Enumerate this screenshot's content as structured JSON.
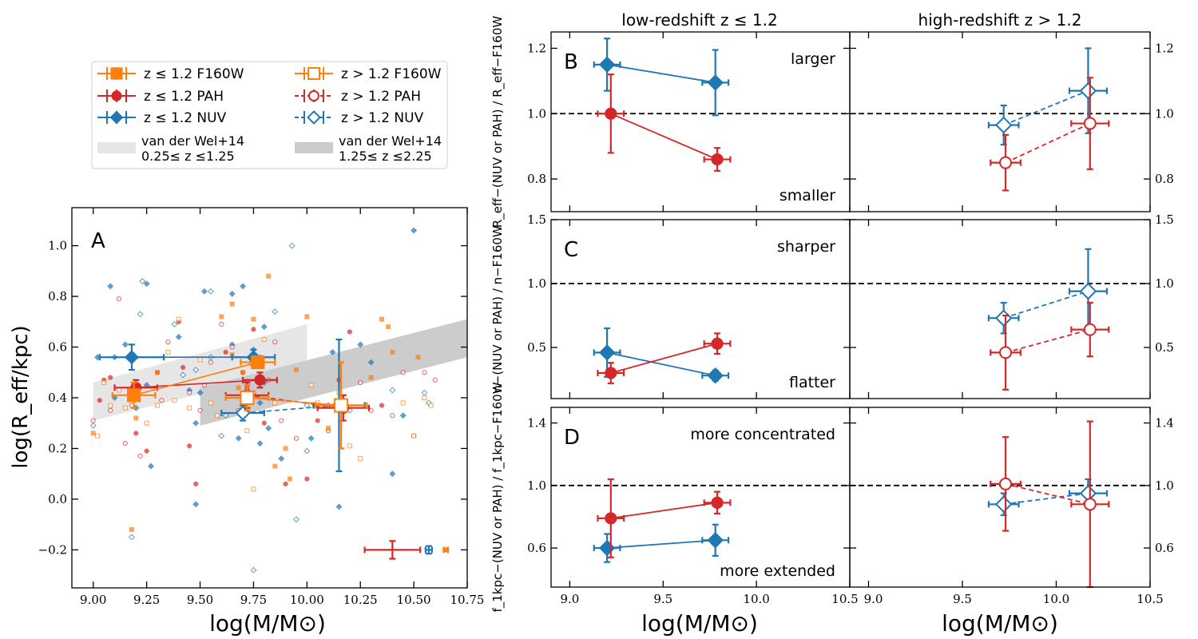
{
  "colors": {
    "f160": "#ff7f0e",
    "pah": "#d62728",
    "nuv": "#1f77b4",
    "band_low": "#e6e6e6",
    "band_high": "#cccccc"
  },
  "legend": {
    "entries": [
      {
        "label": "z ≤ 1.2 F160W",
        "series": "f160",
        "style": "filled-square"
      },
      {
        "label": "z ≤ 1.2 PAH",
        "series": "pah",
        "style": "filled-circle"
      },
      {
        "label": "z ≤ 1.2 NUV",
        "series": "nuv",
        "style": "filled-diamond"
      },
      {
        "label": "z > 1.2 F160W",
        "series": "f160",
        "style": "open-square"
      },
      {
        "label": "z > 1.2 PAH",
        "series": "pah",
        "style": "open-circle"
      },
      {
        "label": "z > 1.2 NUV",
        "series": "nuv",
        "style": "open-diamond"
      }
    ],
    "bands": [
      {
        "line1": "van der Wel+14",
        "line2": "0.25≤ z ≤1.25",
        "shade": "band_low"
      },
      {
        "line1": "van der Wel+14",
        "line2": "1.25≤ z ≤2.25",
        "shade": "band_high"
      }
    ]
  },
  "chart_data": [
    {
      "panel": "A",
      "type": "scatter",
      "xlim": [
        8.9,
        10.75
      ],
      "ylim": [
        -0.35,
        1.15
      ],
      "xlabel": "log(M/M⊙)",
      "ylabel": "log(R_eff/kpc)",
      "xticks": [
        "9.00",
        "9.25",
        "9.50",
        "9.75",
        "10.00",
        "10.25",
        "10.50",
        "10.75"
      ],
      "yticks": [
        "−0.2",
        "0.0",
        "0.2",
        "0.4",
        "0.6",
        "0.8",
        "1.0"
      ],
      "ytick_values": [
        -0.2,
        0.0,
        0.2,
        0.4,
        0.6,
        0.8,
        1.0
      ],
      "xtick_values": [
        9.0,
        9.25,
        9.5,
        9.75,
        10.0,
        10.25,
        10.5,
        10.75
      ],
      "bands": [
        {
          "name": "van der Wel+14 0.25≤z≤1.25",
          "x": [
            9.0,
            10.0
          ],
          "lower": [
            0.31,
            0.52
          ],
          "upper": [
            0.46,
            0.69
          ],
          "shade": "band_low"
        },
        {
          "name": "van der Wel+14 1.25≤z≤2.25",
          "x": [
            9.5,
            10.75
          ],
          "lower": [
            0.29,
            0.56
          ],
          "upper": [
            0.44,
            0.71
          ],
          "shade": "band_high"
        }
      ],
      "scatter": {
        "nuv": [
          [
            9.0,
            0.29
          ],
          [
            9.02,
            0.56
          ],
          [
            9.08,
            0.84
          ],
          [
            9.1,
            0.56
          ],
          [
            9.1,
            0.4
          ],
          [
            9.15,
            0.61
          ],
          [
            9.2,
            0.36
          ],
          [
            9.22,
            0.73
          ],
          [
            9.23,
            0.86
          ],
          [
            9.25,
            0.45
          ],
          [
            9.25,
            0.85
          ],
          [
            9.27,
            0.13
          ],
          [
            9.18,
            -0.15
          ],
          [
            9.38,
            0.69
          ],
          [
            9.4,
            0.64
          ],
          [
            9.42,
            0.49
          ],
          [
            9.45,
            0.43
          ],
          [
            9.48,
            0.3
          ],
          [
            9.48,
            0.51
          ],
          [
            9.5,
            0.42
          ],
          [
            9.52,
            0.82
          ],
          [
            9.55,
            0.82
          ],
          [
            9.55,
            0.56
          ],
          [
            9.6,
            0.25
          ],
          [
            9.62,
            0.33
          ],
          [
            9.65,
            0.81
          ],
          [
            9.65,
            0.61
          ],
          [
            9.68,
            0.24
          ],
          [
            9.7,
            0.84
          ],
          [
            9.75,
            0.59
          ],
          [
            9.75,
            0.53
          ],
          [
            9.78,
            0.38
          ],
          [
            9.78,
            0.22
          ],
          [
            9.8,
            0.46
          ],
          [
            9.8,
            0.68
          ],
          [
            9.82,
            0.28
          ],
          [
            9.85,
            0.74
          ],
          [
            9.88,
            0.16
          ],
          [
            9.93,
            1.0
          ],
          [
            9.95,
            -0.08
          ],
          [
            9.75,
            -0.28
          ],
          [
            9.48,
            -0.02
          ],
          [
            10.0,
            0.37
          ],
          [
            10.0,
            0.19
          ],
          [
            10.02,
            0.24
          ],
          [
            10.1,
            0.37
          ],
          [
            10.12,
            0.58
          ],
          [
            10.15,
            -0.03
          ],
          [
            10.2,
            0.35
          ],
          [
            10.25,
            0.61
          ],
          [
            10.3,
            0.54
          ],
          [
            10.4,
            0.43
          ],
          [
            10.4,
            0.1
          ],
          [
            10.45,
            0.33
          ],
          [
            10.5,
            1.06
          ],
          [
            10.55,
            0.42
          ],
          [
            10.57,
            0.38
          ]
        ],
        "pah": [
          [
            9.0,
            0.31
          ],
          [
            9.03,
            0.39
          ],
          [
            9.05,
            0.47
          ],
          [
            9.08,
            0.48
          ],
          [
            9.08,
            0.35
          ],
          [
            9.12,
            0.79
          ],
          [
            9.15,
            0.22
          ],
          [
            9.18,
            0.37
          ],
          [
            9.2,
            0.26
          ],
          [
            9.22,
            0.17
          ],
          [
            9.25,
            0.19
          ],
          [
            9.3,
            0.5
          ],
          [
            9.32,
            0.39
          ],
          [
            9.35,
            0.62
          ],
          [
            9.4,
            0.7
          ],
          [
            9.42,
            0.52
          ],
          [
            9.45,
            0.42
          ],
          [
            9.48,
            0.06
          ],
          [
            9.5,
            0.35
          ],
          [
            9.52,
            0.45
          ],
          [
            9.55,
            0.54
          ],
          [
            9.6,
            0.69
          ],
          [
            9.62,
            0.58
          ],
          [
            9.65,
            0.6
          ],
          [
            9.68,
            0.35
          ],
          [
            9.7,
            0.5
          ],
          [
            9.72,
            0.44
          ],
          [
            9.75,
            0.42
          ],
          [
            9.75,
            0.67
          ],
          [
            9.78,
            0.56
          ],
          [
            9.8,
            0.3
          ],
          [
            9.82,
            0.47
          ],
          [
            9.85,
            0.62
          ],
          [
            9.88,
            0.31
          ],
          [
            9.9,
            0.06
          ],
          [
            9.95,
            0.24
          ],
          [
            10.0,
            0.08
          ],
          [
            10.05,
            0.31
          ],
          [
            10.1,
            0.27
          ],
          [
            10.15,
            0.47
          ],
          [
            10.2,
            0.66
          ],
          [
            10.25,
            0.46
          ],
          [
            10.3,
            0.35
          ],
          [
            10.35,
            0.37
          ],
          [
            10.4,
            0.33
          ],
          [
            10.45,
            0.5
          ],
          [
            10.5,
            0.25
          ],
          [
            10.55,
            0.5
          ],
          [
            10.6,
            0.47
          ],
          [
            9.45,
            0.21
          ]
        ],
        "f160": [
          [
            9.0,
            0.26
          ],
          [
            9.02,
            0.25
          ],
          [
            9.05,
            0.46
          ],
          [
            9.08,
            0.37
          ],
          [
            9.12,
            0.43
          ],
          [
            9.15,
            0.36
          ],
          [
            9.18,
            -0.12
          ],
          [
            9.2,
            0.32
          ],
          [
            9.25,
            0.3
          ],
          [
            9.3,
            0.5
          ],
          [
            9.35,
            0.58
          ],
          [
            9.38,
            0.39
          ],
          [
            9.4,
            0.71
          ],
          [
            9.45,
            0.36
          ],
          [
            9.5,
            0.55
          ],
          [
            9.55,
            0.38
          ],
          [
            9.58,
            0.33
          ],
          [
            9.6,
            0.72
          ],
          [
            9.65,
            0.77
          ],
          [
            9.65,
            0.57
          ],
          [
            9.68,
            0.44
          ],
          [
            9.7,
            0.5
          ],
          [
            9.72,
            0.27
          ],
          [
            9.75,
            0.04
          ],
          [
            9.75,
            0.71
          ],
          [
            9.8,
            0.63
          ],
          [
            9.82,
            0.88
          ],
          [
            9.85,
            0.38
          ],
          [
            9.85,
            0.13
          ],
          [
            9.9,
            0.2
          ],
          [
            9.92,
            0.08
          ],
          [
            9.95,
            0.51
          ],
          [
            10.0,
            0.72
          ],
          [
            10.02,
            0.45
          ],
          [
            10.05,
            0.38
          ],
          [
            10.1,
            0.28
          ],
          [
            10.15,
            0.42
          ],
          [
            10.2,
            0.21
          ],
          [
            10.25,
            0.16
          ],
          [
            10.3,
            0.48
          ],
          [
            10.35,
            0.71
          ],
          [
            10.38,
            0.68
          ],
          [
            10.4,
            0.58
          ],
          [
            10.45,
            0.38
          ],
          [
            10.5,
            0.25
          ],
          [
            10.52,
            0.56
          ],
          [
            10.55,
            0.4
          ],
          [
            10.58,
            0.37
          ],
          [
            9.3,
            0.37
          ]
        ]
      },
      "binned": [
        {
          "series": "nuv",
          "style": "filled",
          "x": [
            9.18,
            9.75
          ],
          "y": [
            0.56,
            0.56
          ],
          "xerr": [
            0.15,
            0.1
          ],
          "yerr": [
            0.05,
            0.03
          ]
        },
        {
          "series": "pah",
          "style": "filled",
          "x": [
            9.2,
            9.78
          ],
          "y": [
            0.44,
            0.47
          ],
          "xerr": [
            0.1,
            0.08
          ],
          "yerr": [
            0.03,
            0.03
          ]
        },
        {
          "series": "f160",
          "style": "filled",
          "x": [
            9.19,
            9.77
          ],
          "y": [
            0.41,
            0.54
          ],
          "xerr": [
            0.1,
            0.08
          ],
          "yerr": [
            0.05,
            0.02
          ]
        },
        {
          "series": "nuv",
          "style": "open",
          "x": [
            9.7,
            10.15
          ],
          "y": [
            0.34,
            0.37
          ],
          "xerr": [
            0.1,
            0.12
          ],
          "yerr": [
            0.03,
            0.26
          ]
        },
        {
          "series": "pah",
          "style": "open",
          "x": [
            9.72,
            10.17
          ],
          "y": [
            0.41,
            0.36
          ],
          "xerr": [
            0.1,
            0.12
          ],
          "yerr": [
            0.05,
            0.05
          ]
        },
        {
          "series": "f160",
          "style": "open",
          "x": [
            9.72,
            10.16
          ],
          "y": [
            0.4,
            0.37
          ],
          "xerr": [
            0.1,
            0.12
          ],
          "yerr": [
            0.05,
            0.17
          ]
        }
      ],
      "typical_errors": [
        {
          "series": "pah",
          "x": 10.4,
          "y": -0.2,
          "xerr": 0.13,
          "yerr": 0.035
        },
        {
          "series": "nuv",
          "x": 10.57,
          "y": -0.2,
          "xerr": 0.015,
          "yerr": 0.015
        },
        {
          "series": "f160",
          "x": 10.65,
          "y": -0.2,
          "xerr": 0.01,
          "yerr": 0.0
        }
      ],
      "label": "A"
    },
    {
      "panel": "B",
      "type": "errorbar",
      "ylim": [
        0.7,
        1.25
      ],
      "ylabel": "R_eff−(NUV or PAH) / R_eff−F160W",
      "yticks": [
        "0.8",
        "1.0",
        "1.2"
      ],
      "ytick_values": [
        0.8,
        1.0,
        1.2
      ],
      "label": "B",
      "note_top": "larger",
      "note_bottom": "smaller",
      "low": {
        "nuv": {
          "x": [
            9.2,
            9.78
          ],
          "y": [
            1.15,
            1.095
          ],
          "xerr": [
            0.07,
            0.07
          ],
          "yerr": [
            0.08,
            0.1
          ]
        },
        "pah": {
          "x": [
            9.22,
            9.79
          ],
          "y": [
            1.0,
            0.86
          ],
          "xerr": [
            0.07,
            0.07
          ],
          "yerr": [
            0.12,
            0.035
          ]
        }
      },
      "high": {
        "nuv": {
          "x": [
            9.72,
            10.17
          ],
          "y": [
            0.965,
            1.07
          ],
          "xerr": [
            0.08,
            0.1
          ],
          "yerr": [
            0.06,
            0.13
          ]
        },
        "pah": {
          "x": [
            9.73,
            10.18
          ],
          "y": [
            0.85,
            0.97
          ],
          "xerr": [
            0.08,
            0.1
          ],
          "yerr": [
            0.085,
            0.14
          ]
        }
      }
    },
    {
      "panel": "C",
      "type": "errorbar",
      "ylim": [
        0.1,
        1.5
      ],
      "ylabel": "n−(NUV or PAH) / n−F160W",
      "yticks": [
        "0.5",
        "1.0",
        "1.5"
      ],
      "ytick_values": [
        0.5,
        1.0,
        1.5
      ],
      "label": "C",
      "note_top": "sharper",
      "note_bottom": "flatter",
      "low": {
        "nuv": {
          "x": [
            9.2,
            9.78
          ],
          "y": [
            0.46,
            0.28
          ],
          "xerr": [
            0.07,
            0.07
          ],
          "yerr": [
            0.19,
            0.04
          ]
        },
        "pah": {
          "x": [
            9.22,
            9.79
          ],
          "y": [
            0.3,
            0.53
          ],
          "xerr": [
            0.07,
            0.07
          ],
          "yerr": [
            0.08,
            0.08
          ]
        }
      },
      "high": {
        "nuv": {
          "x": [
            9.72,
            10.17
          ],
          "y": [
            0.73,
            0.94
          ],
          "xerr": [
            0.08,
            0.1
          ],
          "yerr": [
            0.12,
            0.33
          ]
        },
        "pah": {
          "x": [
            9.73,
            10.18
          ],
          "y": [
            0.46,
            0.64
          ],
          "xerr": [
            0.08,
            0.1
          ],
          "yerr": [
            0.29,
            0.21
          ]
        }
      }
    },
    {
      "panel": "D",
      "type": "errorbar",
      "ylim": [
        0.35,
        1.5
      ],
      "ylabel": "f_1kpc−(NUV or PAH) / f_1kpc−F160W",
      "yticks": [
        "0.6",
        "1.0",
        "1.4"
      ],
      "ytick_values": [
        0.6,
        1.0,
        1.4
      ],
      "label": "D",
      "note_top": "more concentrated",
      "note_bottom": "more extended",
      "low": {
        "nuv": {
          "x": [
            9.2,
            9.78
          ],
          "y": [
            0.6,
            0.65
          ],
          "xerr": [
            0.07,
            0.07
          ],
          "yerr": [
            0.09,
            0.1
          ]
        },
        "pah": {
          "x": [
            9.22,
            9.79
          ],
          "y": [
            0.79,
            0.89
          ],
          "xerr": [
            0.07,
            0.07
          ],
          "yerr": [
            0.25,
            0.07
          ]
        }
      },
      "high": {
        "nuv": {
          "x": [
            9.72,
            10.17
          ],
          "y": [
            0.88,
            0.95
          ],
          "xerr": [
            0.08,
            0.1
          ],
          "yerr": [
            0.07,
            0.09
          ]
        },
        "pah": {
          "x": [
            9.73,
            10.18
          ],
          "y": [
            1.01,
            0.88
          ],
          "xerr": [
            0.08,
            0.1
          ],
          "yerr": [
            0.3,
            0.53
          ]
        }
      }
    }
  ],
  "right_axes": {
    "xlim_low": [
      8.9,
      10.5
    ],
    "xlim_high": [
      8.9,
      10.5
    ],
    "xticks": [
      "9.0",
      "9.5",
      "10.0",
      "10.5"
    ],
    "xtick_values": [
      9.0,
      9.5,
      10.0,
      10.5
    ],
    "xlabel": "log(M/M⊙)",
    "col_low_title": "low-redshift z ≤ 1.2",
    "col_high_title": "high-redshift z > 1.2",
    "ref_line": 1.0
  }
}
